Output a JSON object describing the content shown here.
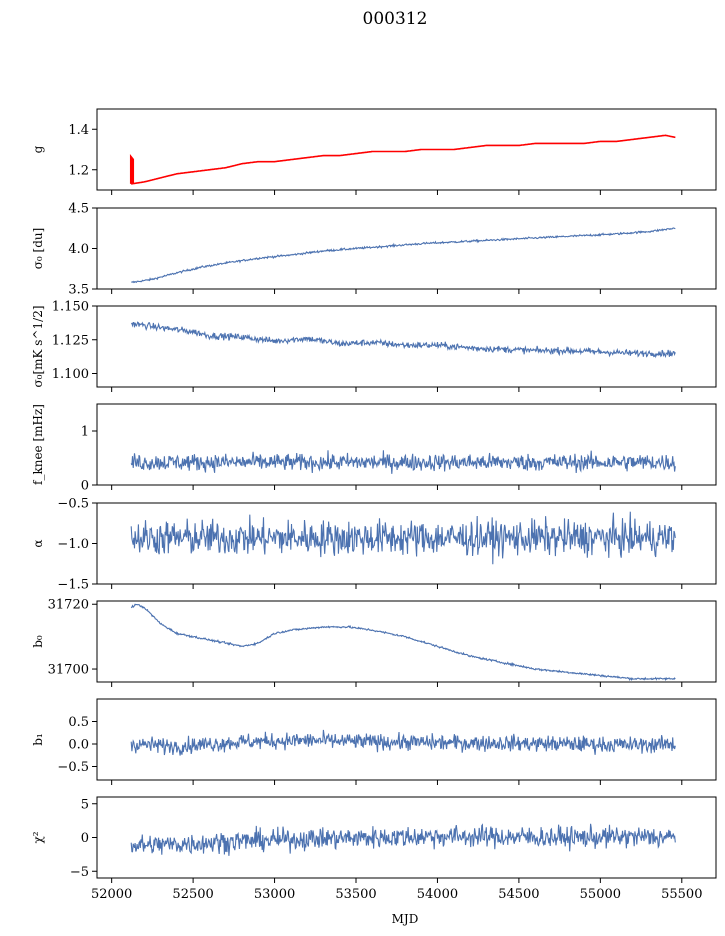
{
  "figure": {
    "title": "000312",
    "xlabel": "MJD",
    "x_ticks": [
      52000,
      52500,
      53000,
      53500,
      54000,
      54500,
      55000,
      55500
    ],
    "x_range": [
      51910,
      55710
    ]
  },
  "chart_data": [
    {
      "type": "line",
      "key": "g",
      "ylabel": "g",
      "ylim": [
        1.1,
        1.5
      ],
      "yticks": [
        1.2,
        1.4
      ],
      "ytick_labels": [
        "1.2",
        "1.4"
      ],
      "series": [
        {
          "name": "data",
          "color": "#4c72b0",
          "start": 52120,
          "end": 55460,
          "x": [
            52120,
            52200,
            52300,
            52400,
            52500,
            52600,
            52700,
            52800,
            52900,
            53000,
            53100,
            53200,
            53300,
            53400,
            53500,
            53600,
            53700,
            53800,
            53900,
            54000,
            54100,
            54200,
            54300,
            54400,
            54500,
            54600,
            54700,
            54800,
            54900,
            55000,
            55100,
            55200,
            55300,
            55400,
            55460
          ],
          "y": [
            1.13,
            1.14,
            1.16,
            1.18,
            1.19,
            1.2,
            1.21,
            1.23,
            1.24,
            1.24,
            1.25,
            1.26,
            1.27,
            1.27,
            1.28,
            1.29,
            1.29,
            1.29,
            1.3,
            1.3,
            1.3,
            1.31,
            1.32,
            1.32,
            1.32,
            1.33,
            1.33,
            1.33,
            1.33,
            1.34,
            1.34,
            1.35,
            1.36,
            1.37,
            1.36
          ],
          "noise": 0.0
        },
        {
          "name": "model",
          "color": "#ff0000",
          "start": 52120,
          "end": 55460,
          "x": [
            52120,
            52200,
            52300,
            52400,
            52500,
            52600,
            52700,
            52800,
            52900,
            53000,
            53100,
            53200,
            53300,
            53400,
            53500,
            53600,
            53700,
            53800,
            53900,
            54000,
            54100,
            54200,
            54300,
            54400,
            54500,
            54600,
            54700,
            54800,
            54900,
            55000,
            55100,
            55200,
            55300,
            55400,
            55460
          ],
          "y": [
            1.13,
            1.14,
            1.16,
            1.18,
            1.19,
            1.2,
            1.21,
            1.23,
            1.24,
            1.24,
            1.25,
            1.26,
            1.27,
            1.27,
            1.28,
            1.29,
            1.29,
            1.29,
            1.3,
            1.3,
            1.3,
            1.31,
            1.32,
            1.32,
            1.32,
            1.33,
            1.33,
            1.33,
            1.33,
            1.34,
            1.34,
            1.35,
            1.36,
            1.37,
            1.36
          ],
          "noise": 0.0,
          "spike": [
            [
              52120,
              1.13
            ],
            [
              52120,
              1.26
            ],
            [
              52130,
              1.25
            ],
            [
              52130,
              1.13
            ]
          ]
        }
      ]
    },
    {
      "type": "line",
      "key": "sigma0_du",
      "ylabel": "σ₀ [du]",
      "ylim": [
        3.5,
        4.5
      ],
      "yticks": [
        3.5,
        4.0,
        4.5
      ],
      "ytick_labels": [
        "3.5",
        "4.0",
        "4.5"
      ],
      "series": [
        {
          "name": "data",
          "color": "#4c72b0",
          "start": 52120,
          "end": 55460,
          "x": [
            52120,
            52250,
            52400,
            52550,
            52700,
            52900,
            53100,
            53300,
            53500,
            53700,
            53900,
            54100,
            54300,
            54500,
            54700,
            54900,
            55100,
            55300,
            55460
          ],
          "y": [
            3.58,
            3.62,
            3.7,
            3.77,
            3.82,
            3.88,
            3.92,
            3.97,
            4.0,
            4.03,
            4.06,
            4.08,
            4.1,
            4.12,
            4.14,
            4.16,
            4.18,
            4.21,
            4.25
          ],
          "noise": 0.006
        }
      ]
    },
    {
      "type": "line",
      "key": "sigma0_mks",
      "ylabel": "σ₀[mK s^1/2]",
      "ylim": [
        1.09,
        1.15
      ],
      "yticks": [
        1.1,
        1.125,
        1.15
      ],
      "ytick_labels": [
        "1.100",
        "1.125",
        "1.150"
      ],
      "series": [
        {
          "name": "data",
          "color": "#4c72b0",
          "start": 52120,
          "end": 55460,
          "x": [
            52120,
            52300,
            52500,
            52600,
            52800,
            53000,
            53200,
            53400,
            53600,
            53800,
            54000,
            54200,
            54400,
            54600,
            54800,
            55000,
            55200,
            55460
          ],
          "y": [
            1.137,
            1.134,
            1.131,
            1.128,
            1.127,
            1.124,
            1.126,
            1.122,
            1.123,
            1.121,
            1.121,
            1.119,
            1.118,
            1.117,
            1.117,
            1.116,
            1.115,
            1.115
          ],
          "noise": 0.0012
        }
      ]
    },
    {
      "type": "line",
      "key": "fknee",
      "ylabel": "f_knee [mHz]",
      "ylim": [
        0,
        1.5
      ],
      "yticks": [
        0,
        1
      ],
      "ytick_labels": [
        "0",
        "1"
      ],
      "series": [
        {
          "name": "data",
          "color": "#4c72b0",
          "start": 52120,
          "end": 55460,
          "x": [
            52120,
            55460
          ],
          "y": [
            0.42,
            0.42
          ],
          "noise": 0.08
        }
      ]
    },
    {
      "type": "line",
      "key": "alpha",
      "ylabel": "α",
      "ylim": [
        -1.5,
        -0.5
      ],
      "yticks": [
        -1.5,
        -1.0,
        -0.5
      ],
      "ytick_labels": [
        "−1.5",
        "−1.0",
        "−0.5"
      ],
      "series": [
        {
          "name": "data",
          "color": "#4c72b0",
          "start": 52120,
          "end": 55460,
          "x": [
            52120,
            55460
          ],
          "y": [
            -0.93,
            -0.93
          ],
          "noise": 0.11
        }
      ]
    },
    {
      "type": "line",
      "key": "b0",
      "ylabel": "b₀",
      "ylim": [
        31696,
        31721
      ],
      "yticks": [
        31700,
        31720
      ],
      "ytick_labels": [
        "31700",
        "31720"
      ],
      "series": [
        {
          "name": "data",
          "color": "#4c72b0",
          "start": 52120,
          "end": 55460,
          "x": [
            52120,
            52150,
            52200,
            52300,
            52400,
            52600,
            52800,
            52900,
            53000,
            53100,
            53300,
            53450,
            53600,
            53800,
            54000,
            54200,
            54400,
            54600,
            54800,
            55000,
            55200,
            55460
          ],
          "y": [
            31719,
            31720,
            31719,
            31714,
            31711,
            31709,
            31707,
            31708,
            31711,
            31712,
            31713,
            31713,
            31712,
            31710,
            31707,
            31704,
            31702,
            31700,
            31699,
            31698,
            31697,
            31697
          ],
          "noise": 0.15
        }
      ]
    },
    {
      "type": "line",
      "key": "b1",
      "ylabel": "b₁",
      "ylim": [
        -0.8,
        1.0
      ],
      "yticks": [
        -0.5,
        0.0,
        0.5
      ],
      "ytick_labels": [
        "−0.5",
        "0.0",
        "0.5"
      ],
      "series": [
        {
          "name": "data",
          "color": "#4c72b0",
          "start": 52120,
          "end": 55460,
          "x": [
            52120,
            52400,
            52800,
            53200,
            53600,
            54000,
            54400,
            54800,
            55200,
            55460
          ],
          "y": [
            0.0,
            -0.05,
            0.05,
            0.08,
            0.05,
            0.03,
            0.02,
            0.0,
            -0.02,
            0.0
          ],
          "noise": 0.09
        }
      ]
    },
    {
      "type": "line",
      "key": "chi2",
      "ylabel": "χ²",
      "ylim": [
        -6,
        6
      ],
      "yticks": [
        -5,
        0,
        5
      ],
      "ytick_labels": [
        "−5",
        "0",
        "5"
      ],
      "series": [
        {
          "name": "data",
          "color": "#4c72b0",
          "start": 52120,
          "end": 55460,
          "x": [
            52120,
            52400,
            52800,
            53200,
            53600,
            54000,
            54400,
            54800,
            55200,
            55460
          ],
          "y": [
            -1.2,
            -1.0,
            -0.5,
            -0.2,
            0.0,
            0.2,
            0.1,
            0.0,
            0.1,
            0.0
          ],
          "noise": 0.8
        }
      ]
    }
  ]
}
